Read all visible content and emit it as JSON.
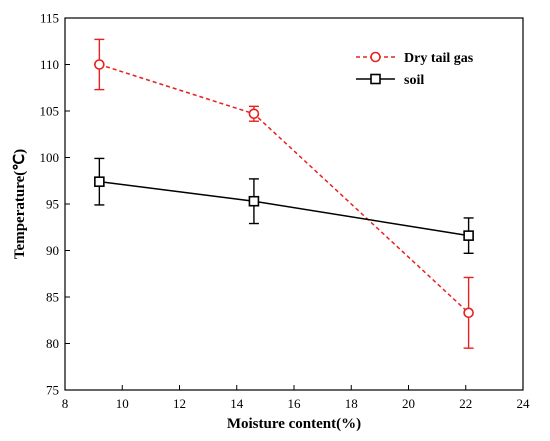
{
  "chart_data": {
    "type": "line",
    "xlabel": "Moisture content(%)",
    "ylabel": "Temperature(℃)",
    "xlim": [
      8,
      24
    ],
    "ylim": [
      75,
      115
    ],
    "xticks": [
      8,
      10,
      12,
      14,
      16,
      18,
      20,
      22,
      24
    ],
    "yticks": [
      75,
      80,
      85,
      90,
      95,
      100,
      105,
      110,
      115
    ],
    "grid": false,
    "legend_position": "top-right",
    "x": [
      9.2,
      14.6,
      22.1
    ],
    "series": [
      {
        "name": "Dry tail gas",
        "color": "#e8201e",
        "line_style": "dashed",
        "marker": "circle",
        "values": [
          110.0,
          104.7,
          83.3
        ],
        "error": [
          2.7,
          0.8,
          3.8
        ]
      },
      {
        "name": "soil",
        "color": "#000000",
        "line_style": "solid",
        "marker": "square",
        "values": [
          97.4,
          95.3,
          91.6
        ],
        "error": [
          2.5,
          2.4,
          1.9
        ]
      }
    ]
  }
}
